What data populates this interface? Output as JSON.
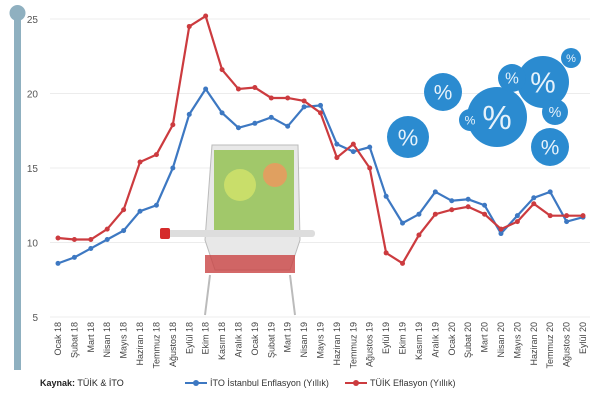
{
  "chart_data": {
    "type": "line",
    "title": "",
    "xlabel": "",
    "ylabel": "",
    "ylim": [
      5,
      25
    ],
    "yticks": [
      "5",
      "10",
      "15",
      "20",
      "25"
    ],
    "grid": true,
    "legend_placement": "bottom",
    "categories": [
      "Ocak 18",
      "Şubat 18",
      "Mart 18",
      "Nisan 18",
      "Mayıs 18",
      "Haziran 18",
      "Temmuz 18",
      "Ağustos 18",
      "Eylül 18",
      "Ekim 18",
      "Kasım 18",
      "Aralık 18",
      "Ocak 19",
      "Şubat 19",
      "Mart 19",
      "Nisan 19",
      "Mayıs 19",
      "Haziran 19",
      "Temmuz 19",
      "Ağustos 19",
      "Eylül 19",
      "Ekim 19",
      "Kasım 19",
      "Aralık 19",
      "Ocak 20",
      "Şubat 20",
      "Mart 20",
      "Nisan 20",
      "Mayıs 20",
      "Haziran 20",
      "Temmuz 20",
      "Ağustos 20",
      "Eylül 20"
    ],
    "series": [
      {
        "name": "İTO İstanbul Enflasyon (Yıllık)",
        "color": "#3d78c2",
        "values": [
          8.6,
          9.0,
          9.6,
          10.2,
          10.8,
          12.1,
          12.5,
          15.0,
          18.6,
          20.3,
          18.7,
          17.7,
          18.0,
          18.4,
          17.8,
          19.1,
          19.2,
          16.6,
          16.1,
          16.4,
          13.1,
          11.3,
          11.9,
          13.4,
          12.8,
          12.9,
          12.5,
          10.6,
          11.8,
          13.0,
          13.4,
          11.4,
          11.7
        ]
      },
      {
        "name": "TÜİK Eflasyon (Yıllık)",
        "color": "#cc3b3f",
        "values": [
          10.3,
          10.2,
          10.2,
          10.9,
          12.2,
          15.4,
          15.9,
          17.9,
          24.5,
          25.2,
          21.6,
          20.3,
          20.4,
          19.7,
          19.7,
          19.5,
          18.7,
          15.7,
          16.6,
          15.0,
          9.3,
          8.6,
          10.5,
          11.9,
          12.2,
          12.4,
          11.9,
          10.9,
          11.4,
          12.6,
          11.8,
          11.8,
          11.8
        ]
      }
    ]
  },
  "source": {
    "label": "Kaynak:",
    "value": "TÜİK & İTO"
  },
  "decor": {
    "percent_symbol": "%"
  }
}
